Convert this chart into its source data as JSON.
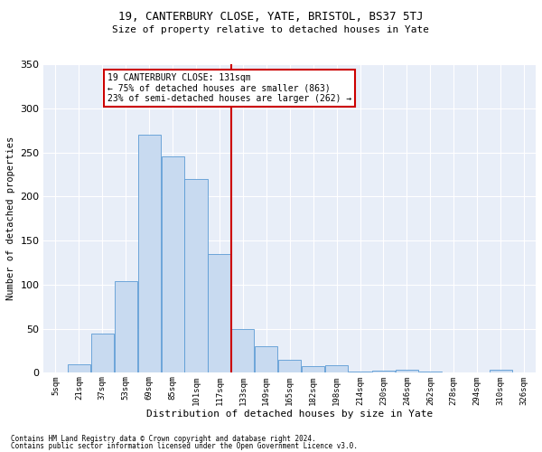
{
  "title": "19, CANTERBURY CLOSE, YATE, BRISTOL, BS37 5TJ",
  "subtitle": "Size of property relative to detached houses in Yate",
  "xlabel": "Distribution of detached houses by size in Yate",
  "ylabel": "Number of detached properties",
  "footer1": "Contains HM Land Registry data © Crown copyright and database right 2024.",
  "footer2": "Contains public sector information licensed under the Open Government Licence v3.0.",
  "annotation_line1": "19 CANTERBURY CLOSE: 131sqm",
  "annotation_line2": "← 75% of detached houses are smaller (863)",
  "annotation_line3": "23% of semi-detached houses are larger (262) →",
  "bar_labels": [
    "5sqm",
    "21sqm",
    "37sqm",
    "53sqm",
    "69sqm",
    "85sqm",
    "101sqm",
    "117sqm",
    "133sqm",
    "149sqm",
    "165sqm",
    "182sqm",
    "198sqm",
    "214sqm",
    "230sqm",
    "246sqm",
    "262sqm",
    "278sqm",
    "294sqm",
    "310sqm",
    "326sqm"
  ],
  "bar_values": [
    0,
    10,
    45,
    104,
    270,
    245,
    220,
    135,
    50,
    30,
    15,
    8,
    9,
    2,
    3,
    4,
    1,
    0,
    0,
    4,
    0
  ],
  "bar_color": "#c8daf0",
  "bar_edge_color": "#5b9bd5",
  "vline_color": "#cc0000",
  "annotation_box_color": "#cc0000",
  "background_color": "#e8eef8",
  "ylim": [
    0,
    350
  ],
  "yticks": [
    0,
    50,
    100,
    150,
    200,
    250,
    300,
    350
  ]
}
